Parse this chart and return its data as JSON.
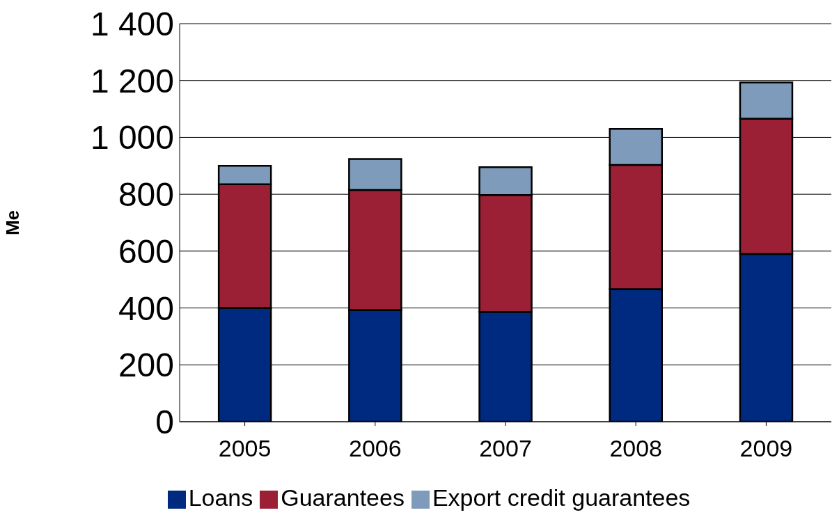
{
  "chart_data": {
    "type": "bar",
    "stacked": true,
    "ylabel": "Me",
    "categories": [
      "2005",
      "2006",
      "2007",
      "2008",
      "2009"
    ],
    "series": [
      {
        "name": "Loans",
        "color": "#002a7f",
        "values": [
          400,
          393,
          386,
          466,
          590
        ]
      },
      {
        "name": "Guarantees",
        "color": "#9b2035",
        "values": [
          435,
          422,
          411,
          437,
          476
        ]
      },
      {
        "name": "Export credit guarantees",
        "color": "#7f9bbb",
        "values": [
          65,
          109,
          98,
          127,
          127
        ]
      }
    ],
    "ylim": [
      0,
      1400
    ],
    "yticks": [
      0,
      200,
      400,
      600,
      800,
      {
        "value": 1000,
        "label": "1 000"
      },
      {
        "value": 1200,
        "label": "1 200"
      },
      {
        "value": 1400,
        "label": "1 400"
      }
    ],
    "grid": "y",
    "legend": "bottom"
  }
}
